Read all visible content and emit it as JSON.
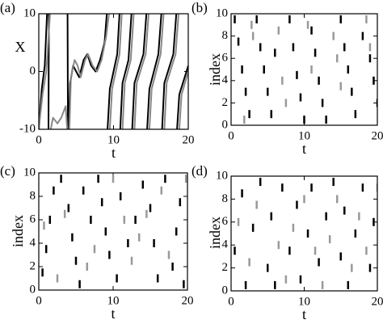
{
  "chart_data": [
    {
      "type": "line",
      "label": "(a)",
      "xlabel": "t",
      "ylabel": "X",
      "xlim": [
        0,
        20
      ],
      "ylim": [
        -10,
        10
      ],
      "xticks": [
        0,
        10,
        20
      ],
      "yticks": [
        -10,
        0,
        10
      ],
      "series": [
        {
          "color": "#000000",
          "x": [
            0,
            0.4,
            0.8,
            1.1,
            null,
            1.3,
            1.35,
            null,
            3.85,
            3.9,
            null,
            4.0,
            4.2,
            4.6,
            5,
            5.4,
            6,
            6.5,
            7,
            7.6,
            8.2,
            8.8,
            9.1,
            null,
            9.2,
            9.5,
            10,
            10.5,
            10.8,
            null,
            10.9,
            11.2,
            12,
            12.4,
            null,
            12.5,
            12.8,
            14,
            14.4,
            null,
            14.5,
            14.8,
            16,
            16.4,
            null,
            16.5,
            16.8,
            18,
            18.4,
            null,
            18.5,
            18.8,
            20
          ],
          "values": [
            -10,
            -3,
            1,
            10,
            null,
            -10,
            10,
            null,
            10,
            -10,
            null,
            -10,
            -2,
            1,
            0,
            -1,
            2,
            3,
            1,
            0,
            2,
            5,
            10,
            null,
            -10,
            -3,
            0,
            3,
            10,
            null,
            -10,
            -2,
            2,
            10,
            null,
            -10,
            -2,
            3,
            10,
            null,
            -10,
            -3,
            3,
            10,
            null,
            -10,
            -2,
            3,
            10,
            null,
            -10,
            -4,
            1
          ]
        },
        {
          "color": "#888888",
          "x": [
            0,
            0.5,
            1.0,
            1.5,
            null,
            1.6,
            1.9,
            2.5,
            3,
            3.6,
            3.8,
            null,
            4.1,
            4.3,
            4.8,
            5.2,
            5.6,
            6.2,
            6.6,
            7.2,
            7.8,
            8.4,
            9.0,
            9.4,
            null,
            9.5,
            9.8,
            10.3,
            10.8,
            11.1,
            null,
            11.2,
            11.5,
            12.3,
            12.7,
            null,
            12.8,
            13.1,
            14.3,
            14.7,
            null,
            14.8,
            15.1,
            16.3,
            16.7,
            null,
            16.8,
            17.1,
            18.3,
            18.7,
            null,
            18.8,
            19.1,
            20
          ],
          "values": [
            -10,
            -4,
            0,
            10,
            null,
            -10,
            -8,
            -9,
            -8,
            -6,
            -10,
            null,
            -10,
            -1,
            2,
            1,
            -1,
            2,
            3,
            1,
            0,
            2,
            6,
            10,
            null,
            -10,
            -3,
            0,
            3,
            10,
            null,
            -10,
            -2,
            2,
            10,
            null,
            -10,
            -2,
            3,
            10,
            null,
            -10,
            -3,
            3,
            10,
            null,
            -10,
            -2,
            3,
            10,
            null,
            -10,
            -4,
            0
          ]
        }
      ]
    },
    {
      "type": "raster",
      "label": "(b)",
      "xlabel": "t",
      "ylabel": "index",
      "xlim": [
        0,
        20
      ],
      "ylim": [
        0,
        10
      ],
      "xticks": [
        0,
        10,
        20
      ],
      "yticks": [
        0,
        2,
        4,
        6,
        8,
        10
      ],
      "series": [
        {
          "color": "#000000",
          "x": [
            0.5,
            1,
            1.5,
            2,
            2.5,
            3.5,
            4,
            4.5,
            5,
            5.5,
            6,
            8,
            8.5,
            9,
            9.5,
            10,
            11,
            11.5,
            12,
            12.5,
            13,
            15,
            15.5,
            16,
            16.5,
            17,
            18,
            19,
            19.5,
            20
          ],
          "values": [
            9.5,
            7.5,
            5,
            3,
            1,
            9.5,
            7,
            5,
            3,
            1,
            6.5,
            9.5,
            7,
            4.5,
            2.5,
            0.5,
            8.5,
            6.5,
            4,
            2,
            0.5,
            9.5,
            7,
            5,
            3,
            1,
            8,
            6,
            4,
            2
          ]
        },
        {
          "color": "#999999",
          "x": [
            1.8,
            2.8,
            3,
            6.5,
            7,
            7.5,
            10.5,
            11,
            14,
            14.5,
            15,
            18.5,
            19
          ],
          "values": [
            0.5,
            9,
            8,
            8.5,
            4,
            2,
            9,
            5,
            8,
            6,
            3.5,
            9.5,
            7
          ]
        }
      ]
    },
    {
      "type": "raster",
      "label": "(c)",
      "xlabel": "t",
      "ylabel": "index",
      "xlim": [
        0,
        20
      ],
      "ylim": [
        0,
        10
      ],
      "xticks": [
        0,
        10,
        20
      ],
      "yticks": [
        0,
        2,
        4,
        6,
        8,
        10
      ],
      "series": [
        {
          "color": "#000000",
          "x": [
            0.5,
            1,
            1.5,
            2,
            3,
            4,
            4.5,
            5,
            5.5,
            6,
            7,
            8,
            8.5,
            9,
            9.5,
            10.5,
            11,
            12,
            13,
            14,
            15,
            15.5,
            16,
            17,
            18,
            18.5,
            19,
            19.5
          ],
          "values": [
            1.5,
            3.5,
            6,
            8.5,
            9.5,
            7,
            4.5,
            2.5,
            0.5,
            8.5,
            6,
            9.5,
            7.5,
            5,
            3,
            1,
            8,
            4,
            6,
            9,
            7,
            4,
            1,
            9.5,
            2,
            5,
            7.5,
            0.5
          ]
        },
        {
          "color": "#999999",
          "x": [
            0.7,
            2.5,
            3.5,
            6.5,
            7.5,
            10,
            11.5,
            12.5,
            13.5,
            14.5,
            16.5,
            17.5,
            19.8
          ],
          "values": [
            5.5,
            1,
            6.5,
            2,
            3.5,
            9.5,
            6,
            2.5,
            4.5,
            6.5,
            8.5,
            3,
            9.5
          ]
        }
      ]
    },
    {
      "type": "raster",
      "label": "(d)",
      "xlabel": "t",
      "ylabel": "index",
      "xlim": [
        0,
        20
      ],
      "ylim": [
        0,
        10
      ],
      "xticks": [
        0,
        10,
        20
      ],
      "yticks": [
        0,
        2,
        4,
        6,
        8,
        10
      ],
      "series": [
        {
          "color": "#000000",
          "x": [
            0.5,
            1.5,
            2,
            3,
            4,
            5,
            5.5,
            6,
            7,
            8,
            9,
            9.5,
            10.5,
            11,
            12,
            13,
            14,
            15,
            15.5,
            16,
            17,
            18,
            19,
            19.5
          ],
          "values": [
            3.5,
            8.5,
            0.5,
            5.5,
            9.5,
            2,
            6.5,
            0.5,
            9,
            3.5,
            7.5,
            1,
            5,
            9,
            2.5,
            6.5,
            9.5,
            3,
            7,
            0.5,
            5,
            9,
            2,
            6
          ]
        },
        {
          "color": "#999999",
          "x": [
            1,
            2.5,
            3.5,
            6.5,
            7.5,
            8.5,
            10,
            11.5,
            12.5,
            13.5,
            14.5,
            16.5,
            17.5,
            18.5,
            20
          ],
          "values": [
            6,
            2.5,
            7.5,
            4,
            1,
            5.5,
            8,
            3.5,
            0.5,
            4.5,
            8,
            2,
            6.5,
            3.5,
            9
          ]
        }
      ]
    }
  ]
}
